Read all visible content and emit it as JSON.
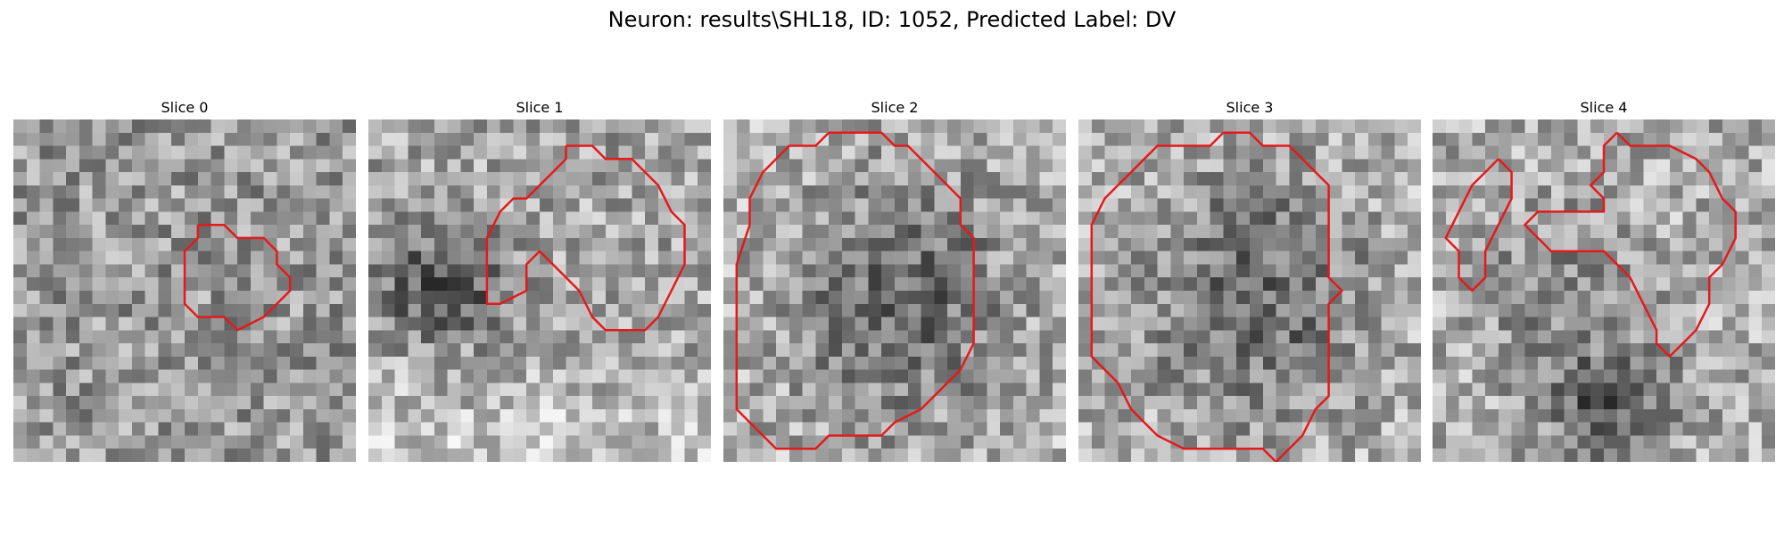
{
  "figure": {
    "title": "Neuron: results\\SHL18, ID: 1052, Predicted Label: DV"
  },
  "contour_color": "#e31a1c",
  "panels": [
    {
      "title": "Slice 0",
      "pattern": "uniform",
      "contour": [
        [
          14,
          8
        ],
        [
          16,
          8
        ],
        [
          17,
          9
        ],
        [
          19,
          9
        ],
        [
          20,
          10
        ],
        [
          20,
          11
        ],
        [
          21,
          12
        ],
        [
          21,
          13
        ],
        [
          20,
          14
        ],
        [
          19,
          15
        ],
        [
          17,
          16
        ],
        [
          16,
          15
        ],
        [
          14,
          15
        ],
        [
          13,
          14
        ],
        [
          13,
          12
        ],
        [
          13,
          10
        ],
        [
          14,
          9
        ],
        [
          14,
          8
        ]
      ]
    },
    {
      "title": "Slice 1",
      "pattern": "dark-left-band",
      "contour": [
        [
          15,
          2
        ],
        [
          17,
          2
        ],
        [
          18,
          3
        ],
        [
          20,
          3
        ],
        [
          21,
          4
        ],
        [
          22,
          5
        ],
        [
          23,
          7
        ],
        [
          24,
          8
        ],
        [
          24,
          11
        ],
        [
          23,
          13
        ],
        [
          22,
          15
        ],
        [
          21,
          16
        ],
        [
          18,
          16
        ],
        [
          17,
          15
        ],
        [
          16,
          13
        ],
        [
          14,
          11
        ],
        [
          13,
          10
        ],
        [
          12,
          11
        ],
        [
          12,
          13
        ],
        [
          10,
          14
        ],
        [
          9,
          14
        ],
        [
          9,
          9
        ],
        [
          10,
          7
        ],
        [
          11,
          6
        ],
        [
          12,
          6
        ],
        [
          13,
          5
        ],
        [
          14,
          4
        ],
        [
          15,
          3
        ],
        [
          15,
          2
        ]
      ]
    },
    {
      "title": "Slice 2",
      "pattern": "dark-center",
      "contour": [
        [
          8,
          1
        ],
        [
          12,
          1
        ],
        [
          13,
          2
        ],
        [
          14,
          2
        ],
        [
          15,
          3
        ],
        [
          17,
          5
        ],
        [
          18,
          6
        ],
        [
          18,
          8
        ],
        [
          19,
          9
        ],
        [
          19,
          13
        ],
        [
          19,
          17
        ],
        [
          18,
          19
        ],
        [
          16,
          21
        ],
        [
          15,
          22
        ],
        [
          13,
          23
        ],
        [
          12,
          24
        ],
        [
          8,
          24
        ],
        [
          7,
          25
        ],
        [
          4,
          25
        ],
        [
          3,
          24
        ],
        [
          2,
          23
        ],
        [
          1,
          22
        ],
        [
          1,
          19
        ],
        [
          1,
          15
        ],
        [
          1,
          11
        ],
        [
          2,
          8
        ],
        [
          2,
          6
        ],
        [
          3,
          4
        ],
        [
          4,
          3
        ],
        [
          5,
          2
        ],
        [
          7,
          2
        ],
        [
          8,
          1
        ]
      ]
    },
    {
      "title": "Slice 3",
      "pattern": "dark-center",
      "contour": [
        [
          11,
          1
        ],
        [
          13,
          1
        ],
        [
          14,
          2
        ],
        [
          16,
          2
        ],
        [
          17,
          3
        ],
        [
          18,
          4
        ],
        [
          19,
          5
        ],
        [
          19,
          9
        ],
        [
          19,
          12
        ],
        [
          20,
          13
        ],
        [
          19,
          14
        ],
        [
          19,
          18
        ],
        [
          19,
          21
        ],
        [
          18,
          22
        ],
        [
          17,
          24
        ],
        [
          16,
          25
        ],
        [
          15,
          26
        ],
        [
          14,
          25
        ],
        [
          9,
          25
        ],
        [
          8,
          25
        ],
        [
          6,
          24
        ],
        [
          5,
          23
        ],
        [
          4,
          22
        ],
        [
          3,
          20
        ],
        [
          2,
          19
        ],
        [
          1,
          18
        ],
        [
          1,
          14
        ],
        [
          1,
          11
        ],
        [
          1,
          8
        ],
        [
          2,
          6
        ],
        [
          3,
          5
        ],
        [
          4,
          4
        ],
        [
          5,
          3
        ],
        [
          6,
          2
        ],
        [
          9,
          2
        ],
        [
          10,
          2
        ],
        [
          11,
          1
        ]
      ]
    },
    {
      "title": "Slice 4",
      "pattern": "dark-lower",
      "contour_left": [
        [
          5,
          3
        ],
        [
          6,
          4
        ],
        [
          6,
          6
        ],
        [
          5,
          8
        ],
        [
          4,
          10
        ],
        [
          4,
          12
        ],
        [
          3,
          13
        ],
        [
          2,
          12
        ],
        [
          2,
          10
        ],
        [
          1,
          9
        ],
        [
          2,
          7
        ],
        [
          3,
          5
        ],
        [
          4,
          4
        ],
        [
          5,
          3
        ]
      ],
      "contour_right": [
        [
          14,
          1
        ],
        [
          15,
          2
        ],
        [
          18,
          2
        ],
        [
          20,
          3
        ],
        [
          21,
          4
        ],
        [
          22,
          6
        ],
        [
          23,
          7
        ],
        [
          23,
          9
        ],
        [
          22,
          11
        ],
        [
          21,
          12
        ],
        [
          21,
          14
        ],
        [
          20,
          16
        ],
        [
          19,
          17
        ],
        [
          18,
          18
        ],
        [
          17,
          17
        ],
        [
          17,
          16
        ],
        [
          16,
          14
        ],
        [
          15,
          12
        ],
        [
          14,
          11
        ],
        [
          13,
          10
        ],
        [
          9,
          10
        ],
        [
          8,
          9
        ],
        [
          7,
          8
        ],
        [
          8,
          7
        ],
        [
          13,
          7
        ],
        [
          13,
          6
        ],
        [
          12,
          5
        ],
        [
          13,
          4
        ],
        [
          13,
          2
        ],
        [
          14,
          1
        ]
      ]
    }
  ]
}
